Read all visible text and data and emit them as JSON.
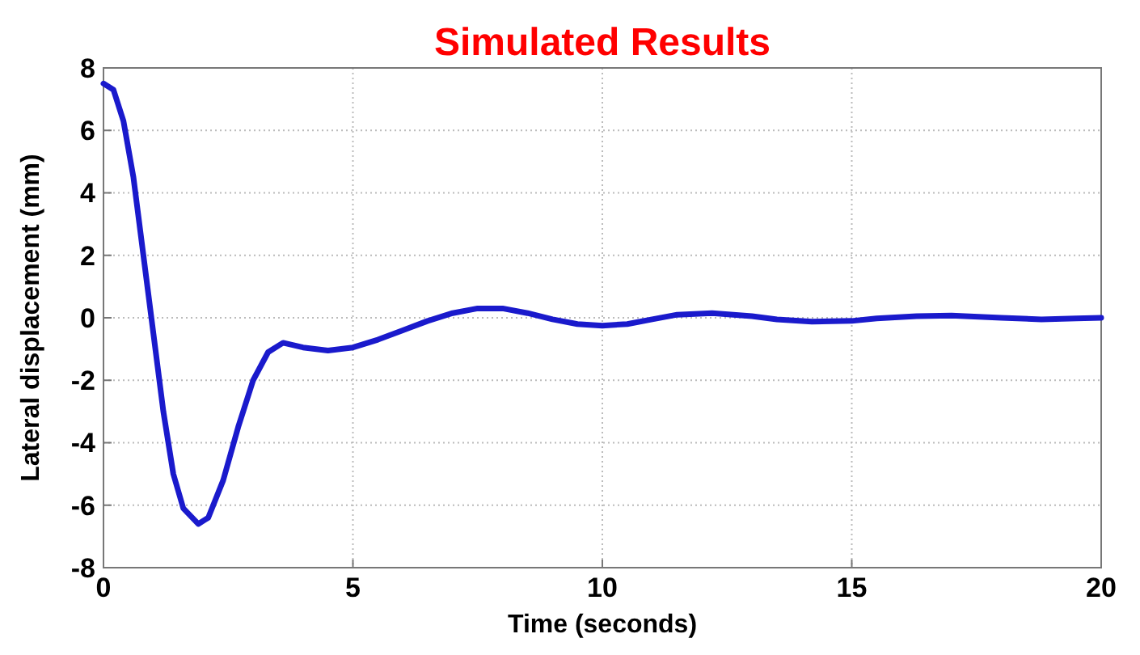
{
  "chart_data": {
    "type": "line",
    "title": "Simulated Results",
    "xlabel": "Time (seconds)",
    "ylabel": "Lateral displacement (mm)",
    "xlim": [
      0,
      20
    ],
    "xticks": [
      0,
      5,
      10,
      15,
      20
    ],
    "ylim": [
      -8,
      8
    ],
    "yticks": [
      -8,
      -6,
      -4,
      -2,
      0,
      2,
      4,
      6,
      8
    ],
    "grid": true,
    "line_style": "solid",
    "series": [
      {
        "color": "#1a1acc",
        "x": [
          0,
          0.2,
          0.4,
          0.6,
          0.8,
          1.0,
          1.2,
          1.4,
          1.6,
          1.9,
          2.1,
          2.4,
          2.7,
          3.0,
          3.3,
          3.6,
          4.0,
          4.5,
          5.0,
          5.5,
          6.0,
          6.5,
          7.0,
          7.5,
          8.0,
          8.5,
          9.0,
          9.5,
          10,
          10.5,
          11,
          11.5,
          12.2,
          13,
          13.5,
          14.2,
          15,
          15.5,
          16.3,
          17,
          18,
          18.8,
          19.5,
          20
        ],
        "values": [
          7.5,
          7.3,
          6.3,
          4.5,
          2,
          -0.5,
          -3,
          -5,
          -6.1,
          -6.6,
          -6.4,
          -5.2,
          -3.5,
          -2,
          -1.1,
          -0.8,
          -0.95,
          -1.05,
          -0.95,
          -0.7,
          -0.4,
          -0.1,
          0.15,
          0.3,
          0.3,
          0.15,
          -0.05,
          -0.2,
          -0.25,
          -0.2,
          -0.05,
          0.1,
          0.15,
          0.05,
          -0.05,
          -0.12,
          -0.1,
          -0.02,
          0.05,
          0.07,
          0,
          -0.05,
          -0.02,
          0
        ]
      }
    ]
  }
}
